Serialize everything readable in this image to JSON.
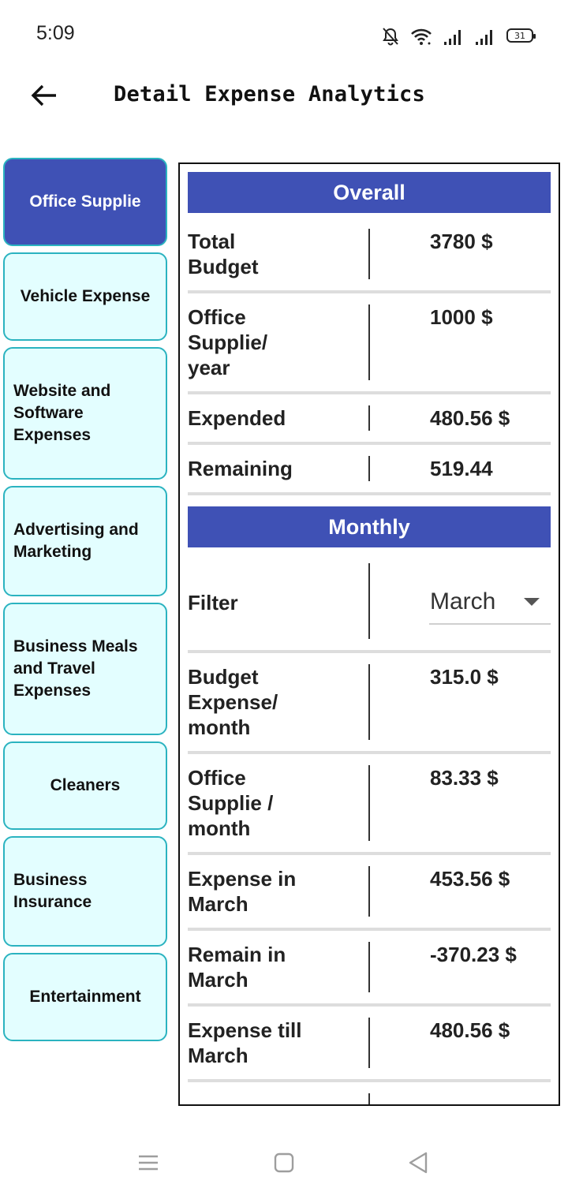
{
  "status_bar": {
    "time": "5:09",
    "battery": "31",
    "icons": [
      "bell-muted-icon",
      "wifi-icon",
      "signal-icon",
      "signal-icon",
      "battery-icon"
    ]
  },
  "app_bar": {
    "title": "Detail Expense Analytics",
    "back_icon": "arrow-left-icon"
  },
  "sidebar": {
    "items": [
      {
        "label": "Office Supplie",
        "active": true
      },
      {
        "label": "Vehicle Expense",
        "active": false
      },
      {
        "label": "Website and Software Expenses",
        "active": false
      },
      {
        "label": "Advertising and Marketing",
        "active": false
      },
      {
        "label": "Business Meals and Travel Expenses",
        "active": false
      },
      {
        "label": "Cleaners",
        "active": false
      },
      {
        "label": "Business Insurance",
        "active": false
      },
      {
        "label": "Entertainment",
        "active": false
      }
    ]
  },
  "overall": {
    "header": "Overall",
    "rows": [
      {
        "label": "Total Budget",
        "value": "3780 $"
      },
      {
        "label": "Office Supplie/ year",
        "value": "1000 $"
      },
      {
        "label": "Expended",
        "value": "480.56 $"
      },
      {
        "label": "Remaining",
        "value": "519.44"
      }
    ]
  },
  "monthly": {
    "header": "Monthly",
    "filter_label": "Filter",
    "filter_value": "March",
    "rows": [
      {
        "label": "Budget Expense/ month",
        "value": "315.0 $"
      },
      {
        "label": "Office Supplie / month",
        "value": "83.33 $"
      },
      {
        "label": "Expense in March",
        "value": "453.56 $"
      },
      {
        "label": "Remain in March",
        "value": "-370.23 $"
      },
      {
        "label": "Expense till March",
        "value": "480.56 $"
      }
    ]
  },
  "nav_bar": {
    "icons": [
      "menu-icon",
      "home-square-icon",
      "back-triangle-icon"
    ]
  },
  "colors": {
    "primary": "#3f51b5",
    "sidebar_bg": "#e3feff",
    "sidebar_border": "#2bb3c0"
  }
}
